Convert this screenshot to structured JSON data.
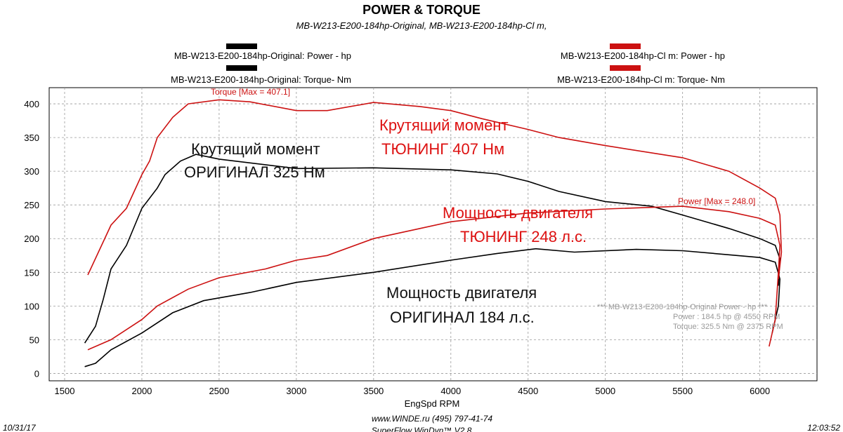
{
  "chart_data": {
    "type": "line",
    "title": "POWER & TORQUE",
    "subtitle": "MB-W213-E200-184hp-Original, MB-W213-E200-184hp-Cl m,",
    "x_label": "EngSpd  RPM",
    "xlim": [
      1400,
      6370
    ],
    "ylim": [
      -11,
      424
    ],
    "xticks": [
      1500,
      2000,
      2500,
      3000,
      3500,
      4000,
      4500,
      5000,
      5500,
      6000
    ],
    "yticks": [
      0,
      50,
      100,
      150,
      200,
      250,
      300,
      350,
      400
    ],
    "grid": true,
    "series": [
      {
        "name": "MB-W213-E200-184hp-Original: Power -  hp",
        "color": "#000000",
        "x": [
          1630,
          1700,
          1800,
          2000,
          2200,
          2400,
          2700,
          3000,
          3500,
          4000,
          4300,
          4550,
          4800,
          5200,
          5500,
          5800,
          6000,
          6100,
          6130,
          6120,
          6080
        ],
        "values": [
          10,
          15,
          35,
          60,
          90,
          108,
          120,
          135,
          150,
          168,
          178,
          185,
          180,
          184,
          182,
          176,
          172,
          165,
          140,
          100,
          60
        ]
      },
      {
        "name": "MB-W213-E200-184hp-Original: Torque-  Nm",
        "color": "#000000",
        "x": [
          1630,
          1700,
          1750,
          1800,
          1900,
          2000,
          2100,
          2150,
          2250,
          2350,
          2500,
          3000,
          3500,
          4000,
          4300,
          4500,
          4700,
          5000,
          5300,
          5500,
          5800,
          6000,
          6100,
          6130,
          6120
        ],
        "values": [
          45,
          70,
          110,
          155,
          190,
          245,
          275,
          295,
          315,
          325,
          318,
          304,
          305,
          302,
          296,
          285,
          270,
          255,
          248,
          235,
          215,
          200,
          190,
          170,
          130
        ]
      },
      {
        "name": "MB-W213-E200-184hp-Cl m: Power -  hp",
        "color": "#cc1111",
        "x": [
          1650,
          1800,
          2000,
          2100,
          2300,
          2500,
          2800,
          3000,
          3200,
          3500,
          3800,
          4000,
          4500,
          5000,
          5500,
          5800,
          6000,
          6100,
          6130,
          6120,
          6100,
          6060
        ],
        "values": [
          35,
          50,
          80,
          100,
          125,
          142,
          155,
          168,
          175,
          200,
          215,
          225,
          238,
          244,
          248,
          240,
          230,
          220,
          190,
          150,
          80,
          40
        ]
      },
      {
        "name": "MB-W213-E200-184hp-Cl m: Torque-  Nm",
        "color": "#cc1111",
        "x": [
          1650,
          1800,
          1900,
          1950,
          2000,
          2050,
          2100,
          2200,
          2300,
          2500,
          2700,
          3000,
          3200,
          3500,
          3800,
          4000,
          4200,
          4500,
          4700,
          5000,
          5500,
          5800,
          6000,
          6100,
          6130,
          6140,
          6120
        ],
        "values": [
          146,
          220,
          245,
          270,
          295,
          315,
          350,
          380,
          400,
          406,
          403,
          390,
          390,
          402,
          396,
          390,
          378,
          362,
          350,
          338,
          320,
          300,
          275,
          260,
          235,
          180,
          140
        ]
      }
    ],
    "annotations": [
      {
        "text": "Torque [Max = 407.1]",
        "color": "#cc1111"
      },
      {
        "text": "Крутящий момент",
        "color": "#dd1111"
      },
      {
        "text": "ТЮНИНГ 407 Нм",
        "color": "#dd1111"
      },
      {
        "text": "Крутящий момент",
        "color": "#111111"
      },
      {
        "text": "ОРИГИНАЛ 325 Нм",
        "color": "#111111"
      },
      {
        "text": "Power  [Max = 248.0]",
        "color": "#cc1111"
      },
      {
        "text": "Мощность двигателя",
        "color": "#dd1111"
      },
      {
        "text": "ТЮНИНГ 248 л.с.",
        "color": "#dd1111"
      },
      {
        "text": "Мощность двигателя",
        "color": "#111111"
      },
      {
        "text": "ОРИГИНАЛ 184 л.с.",
        "color": "#111111"
      },
      {
        "text": "*** MB-W213-E200-184hp-Original  Power -  hp  ***",
        "color": "#999999"
      },
      {
        "text": "Power  :  184.5 hp     @ 4550 RPM",
        "color": "#999999"
      },
      {
        "text": "Torque:  325.5 Nm     @ 2375 RPM",
        "color": "#999999"
      }
    ],
    "footer": {
      "website": "www.WINDE.ru  (495) 797-41-74",
      "software": "SuperFlow WinDyn™ V2.8",
      "date": "10/31/17",
      "time": "12:03:52"
    }
  }
}
